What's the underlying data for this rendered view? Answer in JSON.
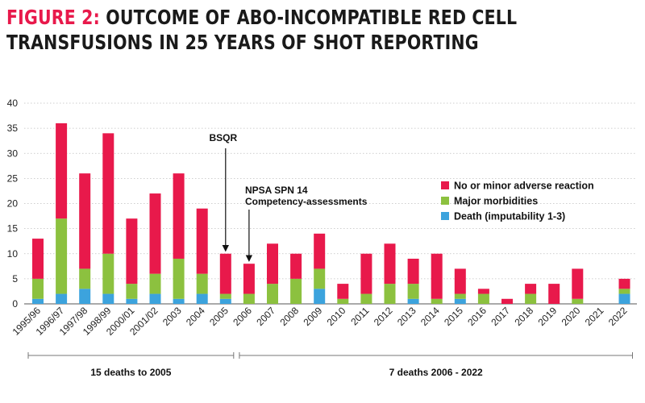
{
  "title": {
    "figure_label": "FIGURE 2:",
    "line1": "OUTCOME OF ABO-INCOMPATIBLE RED CELL",
    "line2": "TRANSFUSIONS IN 25 YEARS OF SHOT REPORTING"
  },
  "colors": {
    "title_accent": "#e8194b",
    "minor": "#e8194b",
    "major": "#8cc13f",
    "death": "#3ca3dd",
    "text": "#111111",
    "grid": "#bfbfbf"
  },
  "chart_data": {
    "type": "bar",
    "stacked": true,
    "categories": [
      "1995/96",
      "1996/97",
      "1997/98",
      "1998/99",
      "2000/01",
      "2001/02",
      "2003",
      "2004",
      "2005",
      "2006",
      "2007",
      "2008",
      "2009",
      "2010",
      "2011",
      "2012",
      "2013",
      "2014",
      "2015",
      "2016",
      "2017",
      "2018",
      "2019",
      "2020",
      "2021",
      "2022"
    ],
    "series": [
      {
        "name": "Death (imputability 1-3)",
        "color": "#3ca3dd",
        "values": [
          1,
          2,
          3,
          2,
          1,
          2,
          1,
          2,
          1,
          0,
          0,
          0,
          3,
          0,
          0,
          0,
          1,
          0,
          1,
          0,
          0,
          0,
          0,
          0,
          0,
          2
        ]
      },
      {
        "name": "Major morbidities",
        "color": "#8cc13f",
        "values": [
          4,
          15,
          4,
          8,
          3,
          4,
          8,
          4,
          1,
          2,
          4,
          5,
          4,
          1,
          2,
          4,
          3,
          1,
          1,
          2,
          0,
          2,
          0,
          1,
          0,
          1
        ]
      },
      {
        "name": "No or minor adverse reaction",
        "color": "#e8194b",
        "values": [
          8,
          19,
          19,
          24,
          13,
          16,
          17,
          13,
          8,
          6,
          8,
          5,
          7,
          3,
          8,
          8,
          5,
          9,
          5,
          1,
          1,
          2,
          4,
          6,
          0,
          2
        ]
      }
    ],
    "ylim": [
      0,
      40
    ],
    "yticks": [
      0,
      5,
      10,
      15,
      20,
      25,
      30,
      35,
      40
    ],
    "grid": true,
    "legend_position": "right",
    "legend": [
      "No or minor adverse reaction",
      "Major morbidities",
      "Death (imputability 1-3)"
    ],
    "annotations": [
      {
        "text": "BSQR",
        "category": "2005"
      },
      {
        "text_line1": "NPSA SPN 14",
        "text_line2": "Competency-assessments",
        "category": "2006"
      }
    ],
    "groups": [
      {
        "label": "15 deaths to 2005",
        "from": "1995/96",
        "to": "2005"
      },
      {
        "label": "7 deaths 2006 - 2022",
        "from": "2006",
        "to": "2022"
      }
    ]
  }
}
